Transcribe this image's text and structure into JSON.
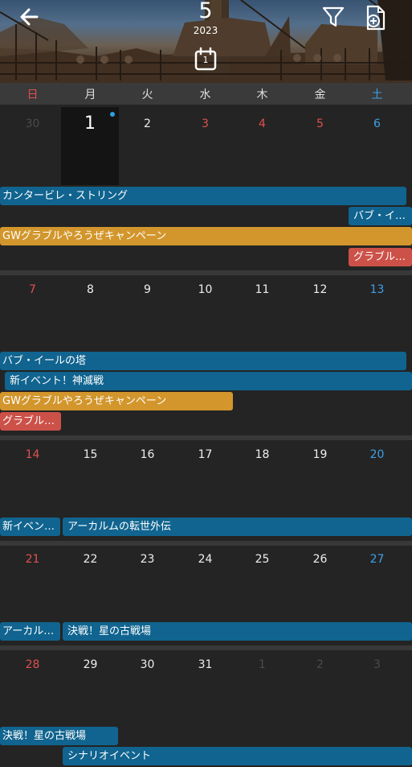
{
  "header": {
    "month": "5",
    "year": "2023",
    "today_day": "1",
    "icons": {
      "back": "arrow-left-icon",
      "filter": "filter-icon",
      "add": "add-document-icon",
      "today": "calendar-icon"
    }
  },
  "weekdays": [
    "日",
    "月",
    "火",
    "水",
    "木",
    "金",
    "土"
  ],
  "colors": {
    "sunday": "#e05050",
    "saturday": "#3ea0e8",
    "event_blue": "#10648f",
    "event_orange": "#d2962c",
    "event_red": "#cc5148"
  },
  "weeks": [
    {
      "days": [
        "30",
        "1",
        "2",
        "3",
        "4",
        "5",
        "6"
      ],
      "events": [
        {
          "label": "カンタービレ・ストリング",
          "color": "blue"
        },
        {
          "label": "バブ・イ…",
          "color": "blue"
        },
        {
          "label": "GWグラブルやろうぜキャンペーン",
          "color": "orange"
        },
        {
          "label": "グラブル…",
          "color": "red"
        }
      ]
    },
    {
      "days": [
        "7",
        "8",
        "9",
        "10",
        "11",
        "12",
        "13"
      ],
      "events": [
        {
          "label": "バブ・イールの塔",
          "color": "blue"
        },
        {
          "label": "新イベント！神滅戦",
          "color": "blue"
        },
        {
          "label": "GWグラブルやろうぜキャンペーン",
          "color": "orange"
        },
        {
          "label": "グラブル…",
          "color": "red"
        }
      ]
    },
    {
      "days": [
        "14",
        "15",
        "16",
        "17",
        "18",
        "19",
        "20"
      ],
      "events": [
        {
          "label": "新イベン…",
          "color": "blue"
        },
        {
          "label": "アーカルムの転世外伝",
          "color": "blue"
        }
      ]
    },
    {
      "days": [
        "21",
        "22",
        "23",
        "24",
        "25",
        "26",
        "27"
      ],
      "events": [
        {
          "label": "アーカル…",
          "color": "blue"
        },
        {
          "label": "決戦！星の古戦場",
          "color": "blue"
        }
      ]
    },
    {
      "days": [
        "28",
        "29",
        "30",
        "31",
        "1",
        "2",
        "3"
      ],
      "events": [
        {
          "label": "決戦！星の古戦場",
          "color": "blue"
        },
        {
          "label": "シナリオイベント",
          "color": "blue"
        }
      ]
    }
  ]
}
